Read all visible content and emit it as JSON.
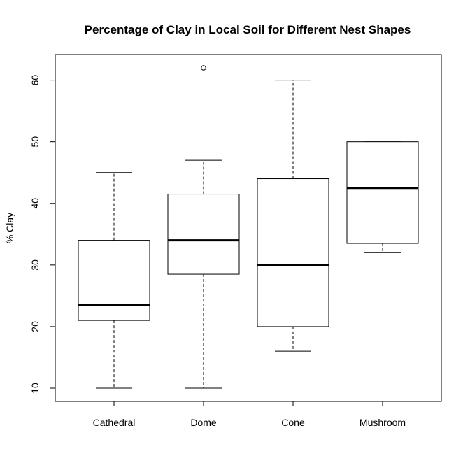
{
  "chart_data": {
    "type": "boxplot",
    "title": "Percentage of Clay in Local Soil for Different Nest Shapes",
    "xlabel": "",
    "ylabel": "% Clay",
    "ylim": [
      8,
      64
    ],
    "yticks": [
      10,
      20,
      30,
      40,
      50,
      60
    ],
    "grid": false,
    "categories": [
      "Cathedral",
      "Dome",
      "Cone",
      "Mushroom"
    ],
    "boxes": [
      {
        "name": "Cathedral",
        "whisker_low": 10,
        "q1": 21,
        "median": 23.5,
        "q3": 34,
        "whisker_high": 45,
        "outliers": []
      },
      {
        "name": "Dome",
        "whisker_low": 10,
        "q1": 28.5,
        "median": 34,
        "q3": 41.5,
        "whisker_high": 47,
        "outliers": [
          62
        ]
      },
      {
        "name": "Cone",
        "whisker_low": 16,
        "q1": 20,
        "median": 30,
        "q3": 44,
        "whisker_high": 60,
        "outliers": []
      },
      {
        "name": "Mushroom",
        "whisker_low": 32,
        "q1": 33.5,
        "median": 42.5,
        "q3": 50,
        "whisker_high": 50,
        "outliers": []
      }
    ]
  }
}
